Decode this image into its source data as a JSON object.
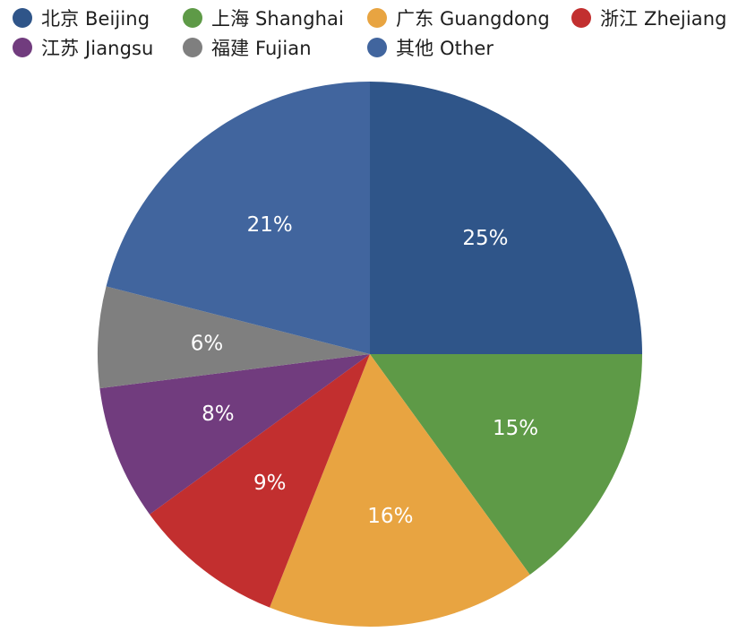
{
  "chart_data": {
    "type": "pie",
    "start_angle_deg": 0,
    "direction": "clockwise",
    "legend_position": "top",
    "slices": [
      {
        "name": "北京 Beijing",
        "value": 25,
        "label": "25%",
        "color": "#2f5589"
      },
      {
        "name": "上海 Shanghai",
        "value": 15,
        "label": "15%",
        "color": "#5e9a47"
      },
      {
        "name": "广东 Guangdong",
        "value": 16,
        "label": "16%",
        "color": "#e8a441"
      },
      {
        "name": "浙江 Zhejiang",
        "value": 9,
        "label": "9%",
        "color": "#c22f2f"
      },
      {
        "name": "江苏 Jiangsu",
        "value": 8,
        "label": "8%",
        "color": "#713c7e"
      },
      {
        "name": "福建 Fujian",
        "value": 6,
        "label": "6%",
        "color": "#7f7f7f"
      },
      {
        "name": "其他 Other",
        "value": 21,
        "label": "21%",
        "color": "#41659e"
      }
    ]
  }
}
